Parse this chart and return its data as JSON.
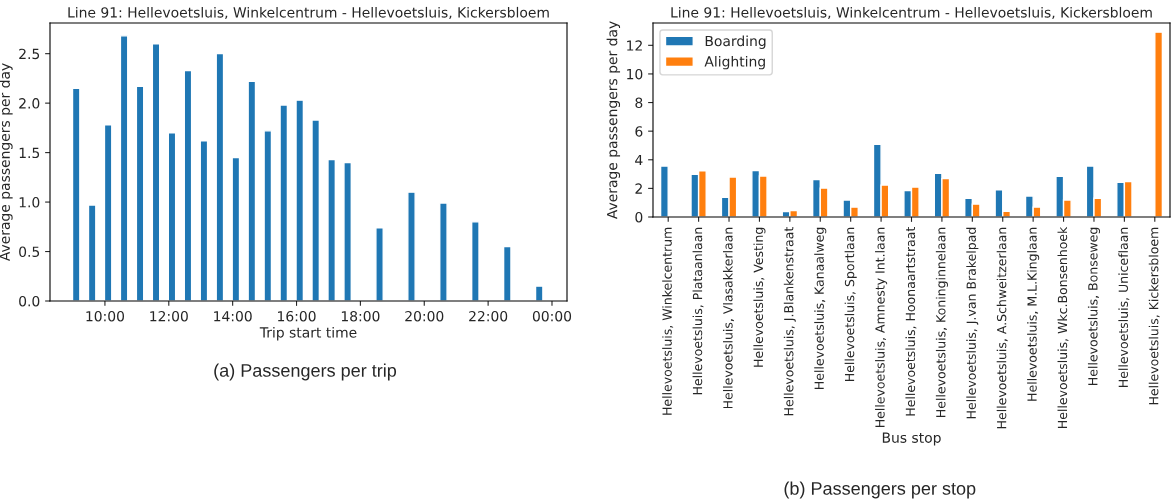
{
  "chart_data": [
    {
      "type": "bar",
      "title": "Line 91: Hellevoetsluis, Winkelcentrum - Hellevoetsluis, Kickersbloem",
      "xlabel": "Trip start time",
      "ylabel": "Average passengers per day",
      "x": [
        9.1,
        9.6,
        10.1,
        10.6,
        11.1,
        11.6,
        12.1,
        12.6,
        13.1,
        13.6,
        14.1,
        14.6,
        15.1,
        15.6,
        16.1,
        16.6,
        17.1,
        17.6,
        18.6,
        19.6,
        20.6,
        21.6,
        22.6,
        23.6
      ],
      "series": [
        {
          "color": "#1f77b4",
          "values": [
            2.15,
            0.97,
            1.78,
            2.68,
            2.17,
            2.6,
            1.7,
            2.33,
            1.62,
            2.5,
            1.45,
            2.22,
            1.72,
            1.98,
            2.03,
            1.83,
            1.43,
            1.4,
            0.74,
            1.1,
            0.99,
            0.8,
            0.55,
            0.15
          ]
        }
      ],
      "xlim": [
        8.28,
        24.47
      ],
      "ylim": [
        0,
        2.81
      ],
      "xticks": [
        {
          "value": 10,
          "label": "10:00"
        },
        {
          "value": 12,
          "label": "12:00"
        },
        {
          "value": 14,
          "label": "14:00"
        },
        {
          "value": 16,
          "label": "16:00"
        },
        {
          "value": 18,
          "label": "18:00"
        },
        {
          "value": 20,
          "label": "20:00"
        },
        {
          "value": 22,
          "label": "22:00"
        },
        {
          "value": 24,
          "label": "00:00"
        }
      ],
      "yticks": [
        {
          "value": 0,
          "label": "0.0"
        },
        {
          "value": 0.5,
          "label": "0.5"
        },
        {
          "value": 1,
          "label": "1.0"
        },
        {
          "value": 1.5,
          "label": "1.5"
        },
        {
          "value": 2,
          "label": "2.0"
        },
        {
          "value": 2.5,
          "label": "2.5"
        }
      ],
      "grid": false,
      "legend": false,
      "annotations": [
        "(a) Passengers per trip"
      ]
    },
    {
      "type": "bar",
      "title": "Line 91: Hellevoetsluis, Winkelcentrum - Hellevoetsluis, Kickersbloem",
      "xlabel": "Bus stop",
      "ylabel": "Average passengers per day",
      "categories": [
        "Hellevoetsluis, Winkelcentrum",
        "Hellevoetsluis, Plataanlaan",
        "Hellevoetsluis, Vlasakkerlaan",
        "Hellevoetsluis, Vesting",
        "Hellevoetsluis, J.Blankenstraat",
        "Hellevoetsluis, Kanaalweg",
        "Hellevoetsluis, Sportlaan",
        "Hellevoetsluis, Amnesty Int.laan",
        "Hellevoetsluis, Hoonaartstraat",
        "Hellevoetsluis, Koninginnelaan",
        "Hellevoetsluis, J.van Brakelpad",
        "Hellevoetsluis, A.Schweitzerlaan",
        "Hellevoetsluis, M.L.Kinglaan",
        "Hellevoetsluis, Wkc.Bonsenhoek",
        "Hellevoetsluis, Bonseweg",
        "Hellevoetsluis, Uniceflaan",
        "Hellevoetsluis, Kickersbloem"
      ],
      "series": [
        {
          "name": "Boarding",
          "color": "#1f77b4",
          "values": [
            3.56,
            2.99,
            1.38,
            3.25,
            0.38,
            2.61,
            1.19,
            5.08,
            1.85,
            3.06,
            1.31,
            1.9,
            1.47,
            2.85,
            3.56,
            2.42,
            null
          ]
        },
        {
          "name": "Alighting",
          "color": "#ff7f0e",
          "values": [
            null,
            3.23,
            2.8,
            2.87,
            0.45,
            2.02,
            0.69,
            2.23,
            2.09,
            2.68,
            0.9,
            0.4,
            0.69,
            1.19,
            1.31,
            2.47,
            12.92
          ]
        }
      ],
      "ylim": [
        0,
        13.56
      ],
      "yticks": [
        0,
        2,
        4,
        6,
        8,
        10,
        12
      ],
      "grid": false,
      "legend": "top left",
      "annotations": [
        "(b) Passengers per stop"
      ]
    }
  ]
}
